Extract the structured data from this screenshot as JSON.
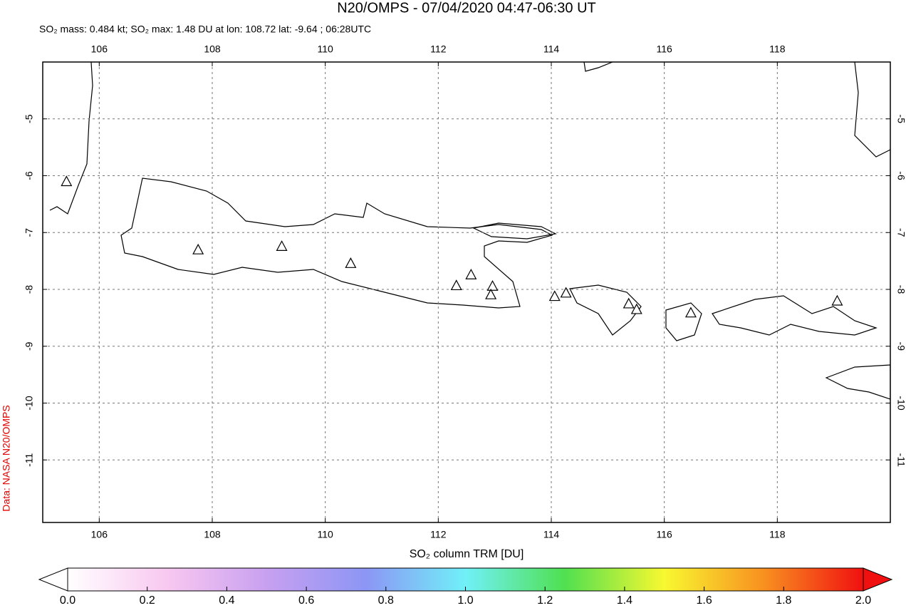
{
  "chart_data": {
    "type": "map",
    "title": "N20/OMPS - 07/04/2020 04:47-06:30 UT",
    "subtitle": "SO₂ mass: 0.484 kt; SO₂ max: 1.48 DU at lon: 108.72 lat: -9.64 ; 06:28UTC",
    "credit": "Data: NASA N20/OMPS",
    "colorbar_label": "SO₂ column TRM [DU]",
    "xlim": [
      105,
      120
    ],
    "ylim": [
      -12.1,
      -4
    ],
    "xticks": [
      106,
      108,
      110,
      112,
      114,
      116,
      118
    ],
    "yticks": [
      -5,
      -6,
      -7,
      -8,
      -9,
      -10,
      -11
    ],
    "grid": true,
    "volcanoes": {
      "lon": [
        107.75,
        109.23,
        110.45,
        112.32,
        112.58,
        112.96,
        112.93,
        114.06,
        114.26,
        115.37,
        115.51,
        116.47,
        119.06,
        105.42
      ],
      "lat": [
        -7.3,
        -7.24,
        -7.54,
        -7.93,
        -7.74,
        -7.94,
        -8.09,
        -8.12,
        -8.06,
        -8.25,
        -8.35,
        -8.41,
        -8.2,
        -6.1
      ]
    },
    "clim": [
      0,
      2
    ],
    "colorbar_colors": [
      "#ffffff",
      "#f8c8f0",
      "#c8a0f0",
      "#8c96f5",
      "#70f0f8",
      "#50e050",
      "#f8f830",
      "#f89020",
      "#f01010"
    ],
    "colorbar_ticks": [
      {
        "value": 0,
        "label": "0.0"
      },
      {
        "value": 0.2,
        "label": "0.2"
      },
      {
        "value": 0.4,
        "label": "0.4"
      },
      {
        "value": 0.6,
        "label": "0.6"
      },
      {
        "value": 0.8,
        "label": "0.8"
      },
      {
        "value": 1,
        "label": "1.0"
      },
      {
        "value": 1.2,
        "label": "1.2"
      },
      {
        "value": 1.4,
        "label": "1.4"
      },
      {
        "value": 1.6,
        "label": "1.6"
      },
      {
        "value": 1.8,
        "label": "1.8"
      },
      {
        "value": 2,
        "label": "2.0"
      }
    ]
  }
}
